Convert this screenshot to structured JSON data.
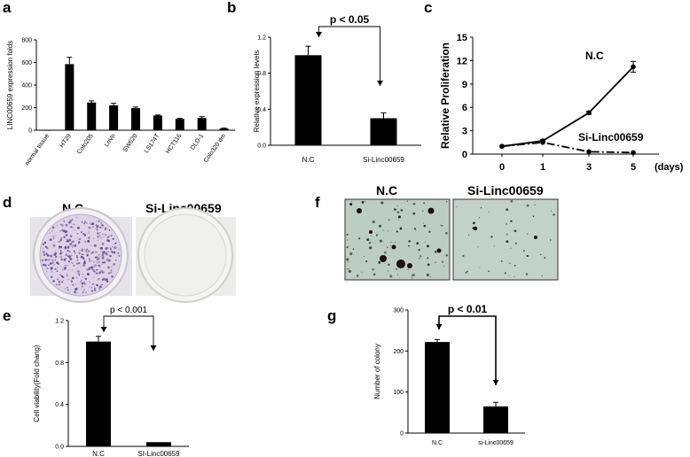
{
  "panels": {
    "a": "a",
    "b": "b",
    "c": "c",
    "d": "d",
    "e": "e",
    "f": "f",
    "g": "g"
  },
  "image_labels": {
    "d_left": "N.C",
    "d_right": "Si-Linc00659",
    "f_left": "N.C",
    "f_right": "Si-Linc00659"
  },
  "chart_data": [
    {
      "id": "a",
      "type": "bar",
      "ylabel": "LINC00659 expression folds",
      "categories": [
        "normal tissue",
        "HT29",
        "Colo205",
        "LoVo",
        "SW620",
        "LS174T",
        "HCT116",
        "DLD-1",
        "Colo320 dm"
      ],
      "values": [
        0,
        585,
        245,
        220,
        195,
        130,
        100,
        108,
        15
      ],
      "errors": [
        0,
        60,
        15,
        18,
        10,
        5,
        5,
        12,
        3
      ],
      "ylim": [
        0,
        800
      ],
      "yticks": [
        "0",
        "200",
        "400",
        "600",
        "800"
      ]
    },
    {
      "id": "b",
      "type": "bar",
      "ylabel": "Relative expression levels",
      "categories": [
        "N.C",
        "Si-Linc00659"
      ],
      "values": [
        1.0,
        0.3
      ],
      "errors": [
        0.1,
        0.06
      ],
      "ylim": [
        0,
        1.2
      ],
      "yticks": [
        "0.0",
        "0.4",
        "0.8",
        "1.2"
      ],
      "annotation": "p < 0.05"
    },
    {
      "id": "c",
      "type": "line",
      "ylabel": "Relative Proliferation",
      "x_ticks": [
        "0",
        "1",
        "3",
        "5"
      ],
      "x_unit": "(days)",
      "ylim": [
        0,
        15
      ],
      "yticks": [
        "0",
        "3",
        "6",
        "9",
        "12",
        "15"
      ],
      "series": [
        {
          "name": "N.C",
          "values": [
            1.0,
            1.7,
            5.3,
            11.2
          ],
          "errors": [
            0.1,
            0.15,
            0.2,
            0.7
          ]
        },
        {
          "name": "Si-Linc00659",
          "values": [
            1.0,
            1.5,
            0.3,
            0.2
          ],
          "errors": [
            0.05,
            0.1,
            0.05,
            0.05
          ]
        }
      ]
    },
    {
      "id": "e",
      "type": "bar",
      "ylabel": "Cell viability(Fold chang)",
      "categories": [
        "N.C",
        "SI-Linc00659"
      ],
      "values": [
        1.0,
        0.04
      ],
      "errors": [
        0.05,
        0.0
      ],
      "ylim": [
        0,
        1.2
      ],
      "yticks": [
        "0.0",
        "0.4",
        "0.8",
        "1.2"
      ],
      "annotation": "p < 0.001"
    },
    {
      "id": "g",
      "type": "bar",
      "ylabel": "Number of colony",
      "categories": [
        "N.C",
        "si-Linc00659"
      ],
      "values": [
        222,
        65
      ],
      "errors": [
        6,
        10
      ],
      "ylim": [
        0,
        300
      ],
      "yticks": [
        "0",
        "100",
        "200",
        "300"
      ],
      "annotation": "p < 0.01"
    }
  ],
  "colors": {
    "bar": "#000000",
    "axis": "#000000",
    "dish_bg": "#e9e9ee",
    "dish_bg2": "#eeeeec",
    "agar": "#b8c9c0",
    "colony_stain": "#6a4a8a"
  }
}
